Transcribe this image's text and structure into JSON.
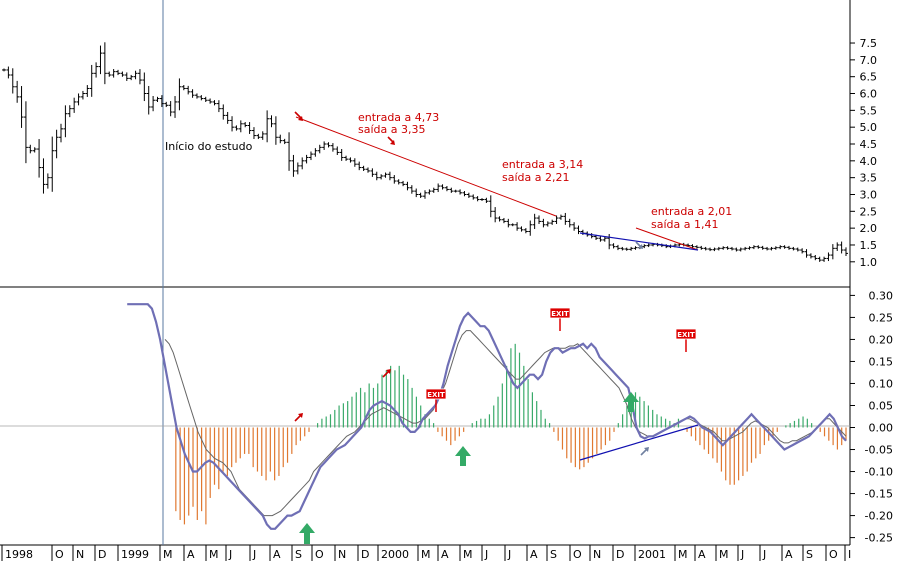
{
  "chart_data": [
    {
      "type": "ohlc",
      "panel": "price",
      "y_ticks": [
        "7.5",
        "7.0",
        "6.5",
        "6.0",
        "5.5",
        "5.0",
        "4.5",
        "4.0",
        "3.5",
        "3.0",
        "2.5",
        "2.0",
        "1.5",
        "1.0"
      ],
      "ylim": [
        0.4,
        8.6
      ],
      "x_index_range": [
        0,
        205
      ],
      "prices": [
        6.7,
        6.55,
        6.2,
        5.9,
        5.3,
        4.4,
        4.3,
        4.35,
        3.8,
        3.3,
        3.5,
        4.3,
        4.7,
        4.95,
        5.4,
        5.55,
        5.75,
        5.9,
        6.0,
        6.15,
        6.6,
        6.8,
        7.2,
        6.6,
        6.55,
        6.65,
        6.6,
        6.55,
        6.45,
        6.5,
        6.6,
        6.4,
        6.0,
        5.6,
        5.8,
        5.85,
        5.7,
        5.65,
        5.45,
        5.75,
        6.2,
        6.15,
        6.05,
        5.95,
        5.9,
        5.85,
        5.8,
        5.75,
        5.7,
        5.55,
        5.35,
        5.2,
        5.0,
        4.95,
        5.1,
        5.05,
        4.9,
        4.75,
        4.7,
        4.8,
        5.25,
        5.1,
        4.7,
        4.6,
        4.55,
        4.0,
        3.7,
        3.85,
        4.0,
        4.1,
        4.2,
        4.3,
        4.4,
        4.5,
        4.45,
        4.35,
        4.25,
        4.1,
        4.05,
        4.0,
        3.9,
        3.8,
        3.75,
        3.7,
        3.6,
        3.5,
        3.55,
        3.6,
        3.5,
        3.4,
        3.35,
        3.3,
        3.2,
        3.1,
        3.0,
        2.95,
        3.05,
        3.1,
        3.15,
        3.25,
        3.2,
        3.15,
        3.1,
        3.1,
        3.05,
        3.0,
        2.95,
        2.9,
        2.85,
        2.85,
        2.8,
        2.5,
        2.3,
        2.25,
        2.2,
        2.1,
        2.1,
        2.0,
        1.95,
        1.9,
        2.1,
        2.3,
        2.2,
        2.1,
        2.15,
        2.2,
        2.3,
        2.35,
        2.2,
        2.1,
        2.0,
        1.9,
        1.85,
        1.8,
        1.75,
        1.7,
        1.65,
        1.7,
        1.5,
        1.45,
        1.4,
        1.38,
        1.37,
        1.4,
        1.42,
        1.45,
        1.48,
        1.5,
        1.52,
        1.5,
        1.48,
        1.45,
        1.47,
        1.5,
        1.52,
        1.5,
        1.48,
        1.45,
        1.43,
        1.4,
        1.38,
        1.36,
        1.38,
        1.4,
        1.42,
        1.4,
        1.38,
        1.35,
        1.38,
        1.4,
        1.42,
        1.45,
        1.43,
        1.4,
        1.38,
        1.4,
        1.42,
        1.45,
        1.43,
        1.4,
        1.38,
        1.35,
        1.3,
        1.2,
        1.15,
        1.1,
        1.05,
        1.1,
        1.2,
        1.4,
        1.5,
        1.35,
        1.25
      ],
      "annotations": [
        {
          "id": "inicio",
          "text": "Início do estudo"
        },
        {
          "id": "t1a",
          "text": "entrada a 4,73"
        },
        {
          "id": "t1b",
          "text": "saída a 3,35"
        },
        {
          "id": "t2a",
          "text": "entrada a 3,14"
        },
        {
          "id": "t2b",
          "text": "saída a 2,21"
        },
        {
          "id": "t3a",
          "text": "entrada a 2,01"
        },
        {
          "id": "t3b",
          "text": "saída a 1,41"
        }
      ]
    },
    {
      "type": "histogram+line",
      "panel": "indicator",
      "y_ticks": [
        "0.30",
        "0.25",
        "0.20",
        "0.15",
        "0.10",
        "0.05",
        "0.00",
        "-0.05",
        "-0.10",
        "-0.15",
        "-0.20",
        "-0.25"
      ],
      "ylim": [
        -0.26,
        0.31
      ],
      "x_index_range": [
        0,
        205
      ],
      "histogram": [
        0,
        0,
        0,
        0,
        0,
        0,
        0,
        0,
        0,
        0,
        0,
        0,
        0,
        0,
        0,
        0,
        0,
        0,
        0,
        0,
        0,
        0,
        0,
        0,
        0,
        0,
        0,
        0,
        0,
        0,
        0,
        0,
        0,
        0,
        0,
        0,
        0,
        0,
        0,
        0,
        -0.19,
        -0.21,
        -0.22,
        -0.2,
        -0.18,
        -0.21,
        -0.19,
        -0.22,
        -0.16,
        -0.13,
        -0.14,
        -0.1,
        -0.11,
        -0.09,
        -0.08,
        -0.07,
        -0.06,
        -0.06,
        -0.09,
        -0.1,
        -0.11,
        -0.12,
        -0.1,
        -0.12,
        -0.11,
        -0.09,
        -0.08,
        -0.06,
        -0.04,
        -0.03,
        -0.02,
        -0.01,
        0.0,
        0.01,
        0.02,
        0.025,
        0.03,
        0.04,
        0.05,
        0.055,
        0.06,
        0.07,
        0.08,
        0.09,
        0.08,
        0.1,
        0.09,
        0.1,
        0.12,
        0.13,
        0.14,
        0.13,
        0.14,
        0.12,
        0.11,
        0.09,
        0.07,
        0.05,
        0.03,
        0.02,
        0.01,
        -0.01,
        -0.02,
        -0.03,
        -0.04,
        -0.03,
        -0.02,
        -0.01,
        0.0,
        0.01,
        0.015,
        0.02,
        0.02,
        0.03,
        0.05,
        0.07,
        0.1,
        0.14,
        0.18,
        0.19,
        0.17,
        0.14,
        0.11,
        0.08,
        0.06,
        0.04,
        0.02,
        0.01,
        -0.01,
        -0.03,
        -0.05,
        -0.07,
        -0.08,
        -0.09,
        -0.095,
        -0.09,
        -0.08,
        -0.07,
        -0.06,
        -0.05,
        -0.04,
        -0.03,
        -0.01,
        0.01,
        0.03,
        0.05,
        0.07,
        0.08,
        0.07,
        0.06,
        0.05,
        0.04,
        0.03,
        0.025,
        0.02,
        0.015,
        0.01,
        0.02,
        0.0,
        -0.01,
        -0.02,
        -0.03,
        -0.04,
        -0.05,
        -0.06,
        -0.07,
        -0.08,
        -0.1,
        -0.12,
        -0.13,
        -0.13,
        -0.12,
        -0.11,
        -0.1,
        -0.08,
        -0.07,
        -0.06,
        -0.04,
        -0.03,
        -0.02,
        -0.01,
        0.0,
        0.005,
        0.01,
        0.015,
        0.02,
        0.025,
        0.02,
        0.01,
        0.0,
        -0.01,
        -0.02,
        -0.03,
        -0.04,
        -0.05,
        -0.04,
        -0.03
      ],
      "fast_line": [
        0.28,
        0.28,
        0.28,
        0.28,
        0.28,
        0.28,
        0.28,
        0.28,
        0.28,
        0.28,
        0.28,
        0.28,
        0.28,
        0.28,
        0.28,
        0.28,
        0.28,
        0.28,
        0.28,
        0.28,
        0.28,
        0.28,
        0.28,
        0.28,
        0.28,
        0.28,
        0.28,
        0.28,
        0.28,
        0.28,
        0.28,
        0.28,
        0.28,
        0.28,
        0.28,
        0.28,
        0.27,
        0.24,
        0.2,
        0.15,
        0.1,
        0.05,
        0.0,
        -0.03,
        -0.06,
        -0.08,
        -0.1,
        -0.1,
        -0.09,
        -0.08,
        -0.075,
        -0.08,
        -0.09,
        -0.1,
        -0.11,
        -0.12,
        -0.13,
        -0.14,
        -0.15,
        -0.16,
        -0.17,
        -0.18,
        -0.19,
        -0.2,
        -0.22,
        -0.23,
        -0.23,
        -0.22,
        -0.21,
        -0.2,
        -0.2,
        -0.195,
        -0.19,
        -0.17,
        -0.15,
        -0.13,
        -0.11,
        -0.09,
        -0.08,
        -0.07,
        -0.06,
        -0.05,
        -0.045,
        -0.04,
        -0.03,
        -0.02,
        -0.01,
        0.0,
        0.02,
        0.04,
        0.05,
        0.055,
        0.06,
        0.055,
        0.05,
        0.04,
        0.03,
        0.01,
        0.0,
        -0.01,
        -0.01,
        0.0,
        0.02,
        0.03,
        0.04,
        0.05,
        0.07,
        0.1,
        0.14,
        0.17,
        0.2,
        0.23,
        0.25,
        0.26,
        0.25,
        0.24,
        0.23,
        0.23,
        0.22,
        0.2,
        0.18,
        0.16,
        0.14,
        0.12,
        0.1,
        0.09,
        0.1,
        0.11,
        0.12,
        0.12,
        0.11,
        0.12,
        0.15,
        0.17,
        0.18,
        0.18,
        0.17,
        0.175,
        0.18,
        0.18,
        0.185,
        0.19,
        0.18,
        0.19,
        0.18,
        0.16,
        0.15,
        0.14,
        0.13,
        0.12,
        0.11,
        0.1,
        0.09,
        0.05,
        0.0,
        -0.02,
        -0.025,
        -0.02,
        -0.02,
        -0.015,
        -0.01,
        -0.005,
        0.0,
        0.005,
        0.01,
        0.015,
        0.02,
        0.025,
        0.02,
        0.01,
        0.0,
        -0.005,
        -0.01,
        -0.02,
        -0.03,
        -0.04,
        -0.03,
        -0.02,
        -0.01,
        0.0,
        0.01,
        0.02,
        0.03,
        0.02,
        0.01,
        0.0,
        -0.01,
        -0.02,
        -0.03,
        -0.04,
        -0.05,
        -0.045,
        -0.04,
        -0.035,
        -0.03,
        -0.025,
        -0.02,
        -0.01,
        0.0,
        0.01,
        0.02,
        0.03,
        0.02,
        0.0,
        -0.02,
        -0.03
      ],
      "slow_line": [
        0.2,
        0.2,
        0.2,
        0.2,
        0.2,
        0.2,
        0.2,
        0.2,
        0.2,
        0.2,
        0.2,
        0.2,
        0.2,
        0.2,
        0.2,
        0.2,
        0.2,
        0.2,
        0.2,
        0.2,
        0.2,
        0.2,
        0.2,
        0.2,
        0.2,
        0.2,
        0.2,
        0.2,
        0.2,
        0.2,
        0.2,
        0.2,
        0.2,
        0.2,
        0.2,
        0.2,
        0.2,
        0.2,
        0.2,
        0.2,
        0.19,
        0.17,
        0.14,
        0.11,
        0.08,
        0.05,
        0.02,
        -0.01,
        -0.03,
        -0.05,
        -0.06,
        -0.07,
        -0.075,
        -0.08,
        -0.09,
        -0.1,
        -0.12,
        -0.14,
        -0.15,
        -0.16,
        -0.17,
        -0.18,
        -0.19,
        -0.2,
        -0.2,
        -0.2,
        -0.195,
        -0.19,
        -0.18,
        -0.17,
        -0.16,
        -0.15,
        -0.14,
        -0.13,
        -0.12,
        -0.1,
        -0.09,
        -0.08,
        -0.07,
        -0.06,
        -0.05,
        -0.04,
        -0.03,
        -0.02,
        -0.015,
        -0.01,
        0.0,
        0.01,
        0.02,
        0.03,
        0.035,
        0.04,
        0.045,
        0.04,
        0.035,
        0.03,
        0.025,
        0.02,
        0.015,
        0.01,
        0.01,
        0.015,
        0.02,
        0.03,
        0.04,
        0.06,
        0.08,
        0.1,
        0.13,
        0.16,
        0.19,
        0.21,
        0.22,
        0.22,
        0.21,
        0.2,
        0.19,
        0.18,
        0.17,
        0.16,
        0.15,
        0.14,
        0.13,
        0.12,
        0.11,
        0.11,
        0.12,
        0.13,
        0.14,
        0.15,
        0.16,
        0.17,
        0.175,
        0.18,
        0.18,
        0.18,
        0.18,
        0.185,
        0.185,
        0.19,
        0.18,
        0.17,
        0.16,
        0.15,
        0.14,
        0.13,
        0.12,
        0.11,
        0.1,
        0.09,
        0.07,
        0.05,
        0.02,
        0.0,
        -0.01,
        -0.015,
        -0.02,
        -0.02,
        -0.015,
        -0.01,
        -0.005,
        0.0,
        0.005,
        0.01,
        0.015,
        0.02,
        0.02,
        0.015,
        0.01,
        0.005,
        0.0,
        -0.005,
        -0.01,
        -0.02,
        -0.03,
        -0.03,
        -0.025,
        -0.02,
        -0.015,
        -0.01,
        0.0,
        0.01,
        0.015,
        0.01,
        0.005,
        0.0,
        -0.01,
        -0.02,
        -0.03,
        -0.035,
        -0.035,
        -0.03,
        -0.03,
        -0.025,
        -0.02,
        -0.015,
        -0.01,
        0.0,
        0.01,
        0.02,
        0.02,
        0.01,
        0.0,
        -0.01,
        -0.02
      ],
      "exit_label": "EXIT"
    }
  ],
  "x_axis_labels": [
    "1998",
    "O",
    "N",
    "D",
    "1999",
    "M",
    "A",
    "M",
    "J",
    "J",
    "A",
    "S",
    "O",
    "N",
    "D",
    "2000",
    "M",
    "A",
    "M",
    "J",
    "J",
    "A",
    "S",
    "O",
    "N",
    "D",
    "2001",
    "M",
    "A",
    "M",
    "J",
    "J",
    "A",
    "S",
    "O",
    "I"
  ],
  "colors": {
    "price_bars": "#000000",
    "red_trendline": "#cc0000",
    "blue_trendline": "#1010b0",
    "annotation_text": "#cc0000",
    "hist_positive": "#3aaa6a",
    "hist_negative": "#e07830",
    "fast_line": "#6f6fb5",
    "slow_line": "#666666",
    "up_arrow": "#33aa66",
    "exit_box": "#dd0000"
  }
}
